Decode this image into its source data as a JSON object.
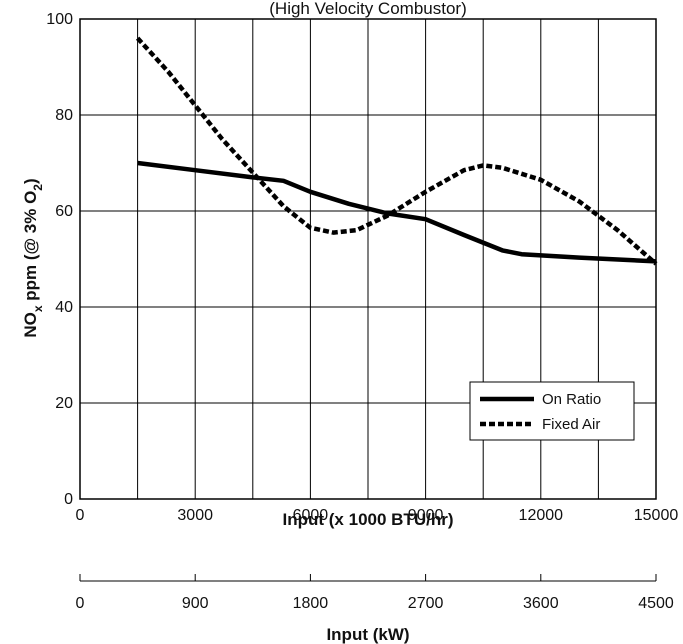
{
  "chart_data": {
    "type": "line",
    "subtitle": "(High Velocity Combustor)",
    "xlabel": "Input (x 1000 BTU/hr)",
    "xlabel2": "Input (kW)",
    "ylabel_parts": [
      "NO",
      "x",
      " ppm (@ 3% O",
      "2",
      ")"
    ],
    "xlim": [
      0,
      15000
    ],
    "ylim": [
      0,
      100
    ],
    "x_ticks": [
      0,
      3000,
      6000,
      9000,
      12000,
      15000
    ],
    "x_tick_labels": [
      "0",
      "3000",
      "6000",
      "9000",
      "12000",
      "15000"
    ],
    "x_grid": [
      0,
      1500,
      3000,
      4500,
      6000,
      7500,
      9000,
      10500,
      12000,
      13500,
      15000
    ],
    "y_ticks": [
      0,
      20,
      40,
      60,
      80,
      100
    ],
    "y_tick_labels": [
      "0",
      "20",
      "40",
      "60",
      "80",
      "100"
    ],
    "x2_ticks": [
      0,
      900,
      1800,
      2700,
      3600,
      4500
    ],
    "x2_tick_labels": [
      "0",
      "900",
      "1800",
      "2700",
      "3600",
      "4500"
    ],
    "x2_max": 4500,
    "grid": true,
    "legend_position": "bottom-right",
    "series": [
      {
        "name": "On Ratio",
        "style": "solid",
        "color": "#000000",
        "x": [
          1500,
          3000,
          4500,
          5300,
          6000,
          7000,
          8000,
          9000,
          10000,
          11000,
          11500,
          13000,
          15000
        ],
        "y": [
          70,
          68.5,
          67,
          66.3,
          64,
          61.5,
          59.5,
          58.3,
          55,
          51.8,
          51,
          50.3,
          49.5
        ]
      },
      {
        "name": "Fixed Air",
        "style": "dashed",
        "color": "#000000",
        "x": [
          1500,
          2300,
          3000,
          3700,
          4500,
          5300,
          6000,
          6600,
          7200,
          8000,
          9000,
          10000,
          10500,
          11000,
          12000,
          13000,
          14000,
          15000
        ],
        "y": [
          96,
          89,
          82,
          75,
          68,
          61,
          56.5,
          55.5,
          56,
          59,
          64,
          68.5,
          69.5,
          69,
          66.5,
          62,
          56,
          49
        ]
      }
    ]
  }
}
